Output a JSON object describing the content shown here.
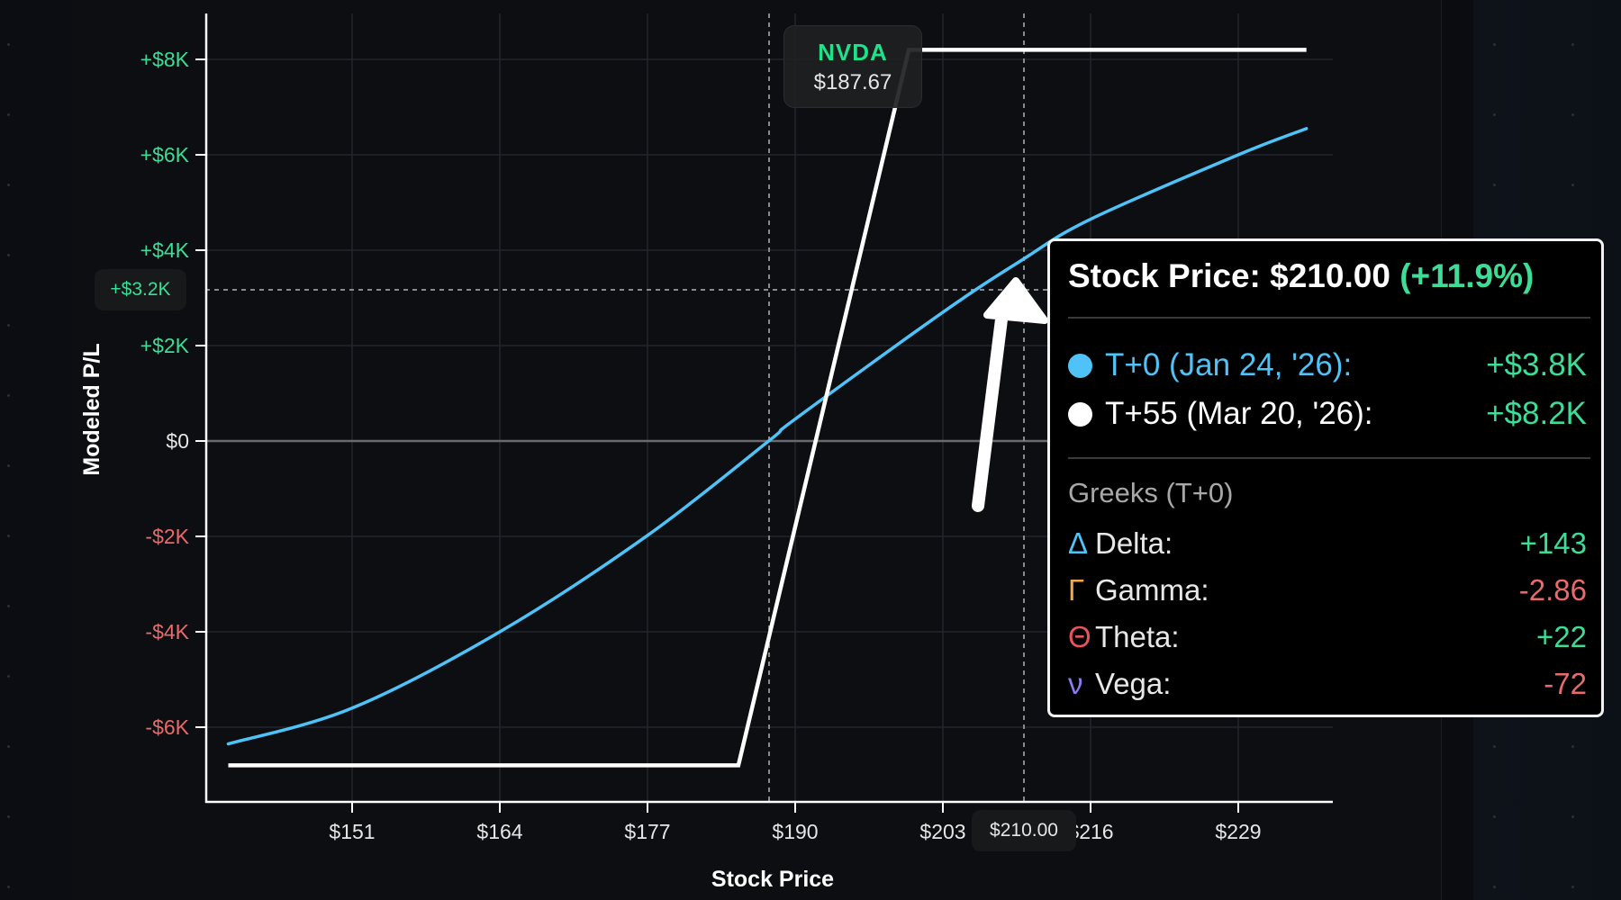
{
  "chart_data": {
    "type": "line",
    "title": "",
    "xlabel": "Stock Price",
    "ylabel": "Modeled P/L",
    "xlim": [
      140.1,
      239.5
    ],
    "ylim": [
      -7600,
      9200
    ],
    "grid": true,
    "x_ticks": [
      "$151",
      "$164",
      "$177",
      "$190",
      "$203",
      "$216",
      "$229"
    ],
    "x_tick_values": [
      151,
      164,
      177,
      190,
      203,
      216,
      229
    ],
    "y_ticks": [
      "+$8K",
      "+$6K",
      "+$4K",
      "+$2K",
      "$0",
      "-$2K",
      "-$4K",
      "-$6K"
    ],
    "y_tick_values": [
      8000,
      6000,
      4000,
      2000,
      0,
      -2000,
      -4000,
      -6000
    ],
    "series": [
      {
        "name": "T+0 (Jan 24, '26)",
        "color": "#4fc3f7",
        "x": [
          140.1,
          151,
          164,
          177,
          187.67,
          190,
          203,
          210,
          216,
          229,
          235
        ],
        "y": [
          -6350,
          -5600,
          -4000,
          -1980,
          0,
          460,
          2700,
          3800,
          4650,
          6000,
          6550
        ]
      },
      {
        "name": "T+55 (Mar 20, '26)",
        "color": "#ffffff",
        "x": [
          140.1,
          185,
          200,
          235
        ],
        "y": [
          -6800,
          -6800,
          8200,
          8200
        ]
      }
    ],
    "annotations": [
      {
        "type": "vline",
        "x": 187.67,
        "label": "NVDA $187.67",
        "style": "dashed"
      },
      {
        "type": "vline",
        "x": 210.0,
        "label": "$210.00",
        "style": "dashed"
      },
      {
        "type": "hline",
        "y": 3200,
        "label": "+$3.2K",
        "style": "dashed"
      },
      {
        "type": "arrow",
        "points_to": {
          "x": 210,
          "y": 3800
        }
      }
    ]
  },
  "axis": {
    "y_title": "Modeled P/L",
    "x_title": "Stock Price",
    "y_ticks": [
      {
        "label": "+$8K",
        "color": "#3ddc97"
      },
      {
        "label": "+$6K",
        "color": "#3ddc97"
      },
      {
        "label": "+$4K",
        "color": "#3ddc97"
      },
      {
        "label": "+$2K",
        "color": "#3ddc97"
      },
      {
        "label": "$0",
        "color": "#e6e6e6"
      },
      {
        "label": "-$2K",
        "color": "#e86a6a"
      },
      {
        "label": "-$4K",
        "color": "#e86a6a"
      },
      {
        "label": "-$6K",
        "color": "#e86a6a"
      }
    ],
    "x_ticks": [
      "$151",
      "$164",
      "$177",
      "$190",
      "$203",
      "$216",
      "$229"
    ]
  },
  "crosshair": {
    "y_label": "+$3.2K",
    "x_label": "$210.00"
  },
  "ticker": {
    "symbol": "NVDA",
    "price": "$187.67"
  },
  "tooltip": {
    "title_prefix": "Stock Price: $210.00",
    "title_change": "(+11.9%)",
    "series": [
      {
        "label": "T+0 (Jan 24, '26):",
        "value": "+$3.8K",
        "dot_color": "#4fc3f7",
        "label_color": "#4fc3f7"
      },
      {
        "label": "T+55 (Mar 20, '26):",
        "value": "+$8.2K",
        "dot_color": "#ffffff",
        "label_color": "#ffffff"
      }
    ],
    "greeks_header": "Greeks (T+0)",
    "greeks": [
      {
        "symbol": "Δ",
        "name": "Delta:",
        "value": "+143",
        "symbol_color": "#4fc3f7",
        "sign": "pos"
      },
      {
        "symbol": "Γ",
        "name": "Gamma:",
        "value": "-2.86",
        "symbol_color": "#f5a54a",
        "sign": "neg"
      },
      {
        "symbol": "Θ",
        "name": "Theta:",
        "value": "+22",
        "symbol_color": "#e8545a",
        "sign": "pos"
      },
      {
        "symbol": "ν",
        "name": "Vega:",
        "value": "-72",
        "symbol_color": "#8b7cf0",
        "sign": "neg"
      }
    ]
  },
  "colors": {
    "positive": "#3ddc97",
    "negative": "#e86a6a",
    "t0_line": "#4fc3f7",
    "expiry_line": "#ffffff",
    "background": "#0d0e12"
  }
}
